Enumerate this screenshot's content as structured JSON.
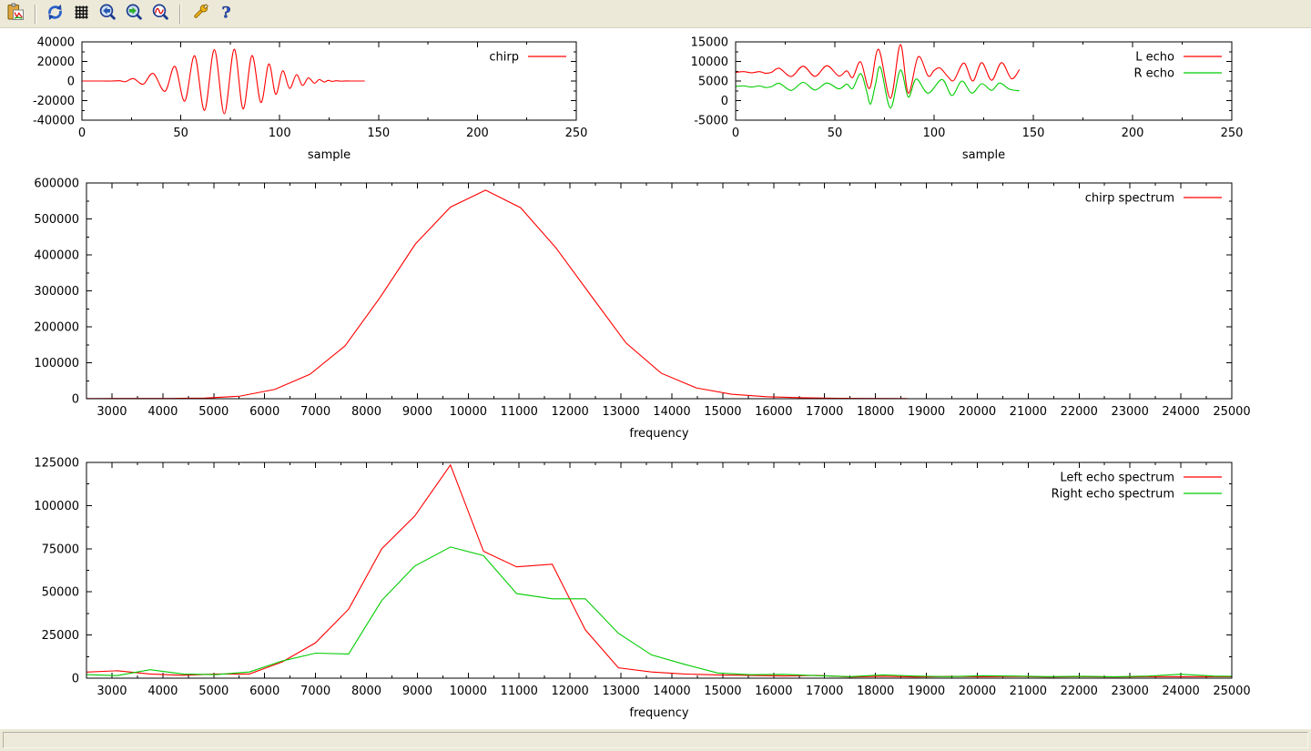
{
  "window": {
    "background": "#ece9d8",
    "canvas_background": "#ffffff",
    "axis_color": "#000000",
    "text_color": "#000000"
  },
  "toolbar": {
    "buttons": [
      {
        "name": "copy-to-clipboard",
        "icon": "copy-plot-icon"
      },
      {
        "name": "replot",
        "icon": "refresh-icon"
      },
      {
        "name": "toggle-grid",
        "icon": "grid-icon"
      },
      {
        "name": "previous-zoom",
        "icon": "zoom-previous-icon"
      },
      {
        "name": "next-zoom",
        "icon": "zoom-next-icon"
      },
      {
        "name": "autoscale",
        "icon": "zoom-autoscale-icon"
      },
      {
        "name": "configure",
        "icon": "wrench-icon"
      },
      {
        "name": "help",
        "icon": "help-icon"
      }
    ]
  },
  "status_bar": {
    "text": ""
  },
  "chart_data": [
    {
      "name": "chirp-signal",
      "type": "line",
      "xlabel": "sample",
      "ylabel": "",
      "x_range": [
        0,
        250
      ],
      "y_range": [
        -40000,
        40000
      ],
      "x_ticks": [
        0,
        50,
        100,
        150,
        200,
        250
      ],
      "y_ticks": [
        -40000,
        -20000,
        0,
        20000,
        40000
      ],
      "x_minor_step": 25,
      "y_minor_step": 10000,
      "grid": false,
      "legend_position": "top-right",
      "legend": [
        {
          "label": "chirp",
          "color": "#ff0000"
        }
      ],
      "series": [
        {
          "name": "chirp",
          "color": "#ff0000",
          "smooth": true,
          "points": [
            [
              0,
              0
            ],
            [
              8,
              0
            ],
            [
              15,
              0
            ],
            [
              19,
              300
            ],
            [
              22,
              -700
            ],
            [
              26,
              2500
            ],
            [
              31,
              -3200
            ],
            [
              36,
              7800
            ],
            [
              42,
              -10500
            ],
            [
              47,
              15000
            ],
            [
              52,
              -20500
            ],
            [
              57,
              25800
            ],
            [
              62,
              -30000
            ],
            [
              67,
              32000
            ],
            [
              72,
              -33500
            ],
            [
              77,
              32500
            ],
            [
              81.5,
              -28500
            ],
            [
              86,
              26000
            ],
            [
              90.5,
              -22000
            ],
            [
              94.5,
              17500
            ],
            [
              98,
              -13500
            ],
            [
              101.5,
              10500
            ],
            [
              105,
              -7500
            ],
            [
              108.5,
              6500
            ],
            [
              111.5,
              -4500
            ],
            [
              114.5,
              3200
            ],
            [
              117.5,
              -2200
            ],
            [
              120,
              1500
            ],
            [
              122.5,
              -1000
            ],
            [
              124.5,
              600
            ],
            [
              126.5,
              -400
            ],
            [
              128.5,
              250
            ],
            [
              131,
              -120
            ],
            [
              133.5,
              60
            ],
            [
              136,
              0
            ],
            [
              143,
              0
            ]
          ]
        }
      ]
    },
    {
      "name": "echo-signals",
      "type": "line",
      "xlabel": "sample",
      "ylabel": "",
      "x_range": [
        0,
        250
      ],
      "y_range": [
        -5000,
        15000
      ],
      "x_ticks": [
        0,
        50,
        100,
        150,
        200,
        250
      ],
      "y_ticks": [
        -5000,
        0,
        5000,
        10000,
        15000
      ],
      "x_minor_step": 25,
      "y_minor_step": 2500,
      "grid": false,
      "legend_position": "top-right",
      "legend": [
        {
          "label": "L echo",
          "color": "#ff0000"
        },
        {
          "label": "R echo",
          "color": "#00cc00"
        }
      ],
      "series": [
        {
          "name": "L echo",
          "color": "#ff0000",
          "smooth": true,
          "points": [
            [
              0,
              7200
            ],
            [
              4,
              7400
            ],
            [
              8,
              7100
            ],
            [
              12,
              7400
            ],
            [
              15,
              7000
            ],
            [
              18,
              7200
            ],
            [
              22,
              8250
            ],
            [
              28,
              6150
            ],
            [
              34,
              8800
            ],
            [
              40,
              6200
            ],
            [
              46,
              8900
            ],
            [
              52,
              6300
            ],
            [
              56,
              7600
            ],
            [
              59,
              5900
            ],
            [
              63,
              9900
            ],
            [
              67.5,
              3100
            ],
            [
              72,
              13100
            ],
            [
              78,
              600
            ],
            [
              83,
              14300
            ],
            [
              87,
              1900
            ],
            [
              92,
              11200
            ],
            [
              97,
              6300
            ],
            [
              100,
              7700
            ],
            [
              103,
              8300
            ],
            [
              107,
              6100
            ],
            [
              110,
              5200
            ],
            [
              115,
              9600
            ],
            [
              119.5,
              5000
            ],
            [
              124,
              9700
            ],
            [
              129,
              5200
            ],
            [
              134,
              9700
            ],
            [
              139,
              5600
            ],
            [
              143,
              7900
            ]
          ]
        },
        {
          "name": "R echo",
          "color": "#00cc00",
          "smooth": true,
          "points": [
            [
              0,
              3600
            ],
            [
              4,
              3750
            ],
            [
              8,
              3450
            ],
            [
              12,
              3750
            ],
            [
              15,
              3350
            ],
            [
              18,
              3550
            ],
            [
              22,
              4400
            ],
            [
              28,
              2600
            ],
            [
              34,
              4650
            ],
            [
              40,
              2700
            ],
            [
              46,
              4500
            ],
            [
              52,
              3000
            ],
            [
              56,
              4200
            ],
            [
              59,
              3100
            ],
            [
              63,
              6900
            ],
            [
              66,
              2400
            ],
            [
              68,
              -900
            ],
            [
              70.5,
              4200
            ],
            [
              73,
              8500
            ],
            [
              78,
              -1900
            ],
            [
              83,
              7800
            ],
            [
              87,
              900
            ],
            [
              91,
              5500
            ],
            [
              97,
              1900
            ],
            [
              104,
              5400
            ],
            [
              109,
              1300
            ],
            [
              114,
              5000
            ],
            [
              119,
              1900
            ],
            [
              124,
              4300
            ],
            [
              129,
              2600
            ],
            [
              133,
              4500
            ],
            [
              138,
              2900
            ],
            [
              143,
              2500
            ]
          ]
        }
      ]
    },
    {
      "name": "chirp-spectrum",
      "type": "line",
      "xlabel": "frequency",
      "ylabel": "",
      "x_range": [
        2500,
        25000
      ],
      "y_range": [
        0,
        600000
      ],
      "x_ticks": [
        3000,
        4000,
        5000,
        6000,
        7000,
        8000,
        9000,
        10000,
        11000,
        12000,
        13000,
        14000,
        15000,
        16000,
        17000,
        18000,
        19000,
        20000,
        21000,
        22000,
        23000,
        24000,
        25000
      ],
      "y_ticks": [
        0,
        100000,
        200000,
        300000,
        400000,
        500000,
        600000
      ],
      "x_minor_step": 500,
      "y_minor_step": 50000,
      "grid": false,
      "legend_position": "top-right",
      "legend": [
        {
          "label": "chirp spectrum",
          "color": "#ff0000"
        }
      ],
      "series": [
        {
          "name": "chirp spectrum",
          "color": "#ff0000",
          "smooth": false,
          "points": [
            [
              2500,
              500
            ],
            [
              2750,
              600
            ],
            [
              3440,
              900
            ],
            [
              4130,
              800
            ],
            [
              4820,
              1800
            ],
            [
              5510,
              7000
            ],
            [
              6200,
              26000
            ],
            [
              6890,
              68000
            ],
            [
              7580,
              147000
            ],
            [
              8270,
              282000
            ],
            [
              8960,
              430000
            ],
            [
              9650,
              533000
            ],
            [
              10340,
              580000
            ],
            [
              11030,
              531000
            ],
            [
              11720,
              420000
            ],
            [
              12410,
              287000
            ],
            [
              13100,
              155000
            ],
            [
              13790,
              71000
            ],
            [
              14480,
              30000
            ],
            [
              15170,
              12500
            ],
            [
              15860,
              5500
            ],
            [
              16550,
              2600
            ],
            [
              17240,
              1300
            ],
            [
              17930,
              700
            ],
            [
              18620,
              400
            ]
          ]
        }
      ]
    },
    {
      "name": "echo-spectra",
      "type": "line",
      "xlabel": "frequency",
      "ylabel": "",
      "x_range": [
        2500,
        25000
      ],
      "y_range": [
        0,
        125000
      ],
      "x_ticks": [
        3000,
        4000,
        5000,
        6000,
        7000,
        8000,
        9000,
        10000,
        11000,
        12000,
        13000,
        14000,
        15000,
        16000,
        17000,
        18000,
        19000,
        20000,
        21000,
        22000,
        23000,
        24000,
        25000
      ],
      "y_ticks": [
        0,
        25000,
        50000,
        75000,
        100000,
        125000
      ],
      "x_minor_step": 500,
      "y_minor_step": 12500,
      "grid": false,
      "legend_position": "top-right",
      "legend": [
        {
          "label": "Left echo spectrum",
          "color": "#ff0000"
        },
        {
          "label": "Right echo spectrum",
          "color": "#00cc00"
        }
      ],
      "series": [
        {
          "name": "Left echo spectrum",
          "color": "#ff0000",
          "smooth": false,
          "points": [
            [
              2500,
              3500
            ],
            [
              3100,
              4300
            ],
            [
              3750,
              2400
            ],
            [
              4400,
              1700
            ],
            [
              5050,
              2400
            ],
            [
              5700,
              2400
            ],
            [
              6350,
              9500
            ],
            [
              7000,
              20500
            ],
            [
              7650,
              40000
            ],
            [
              8300,
              75000
            ],
            [
              8950,
              94000
            ],
            [
              9650,
              123500
            ],
            [
              10300,
              73500
            ],
            [
              10950,
              64500
            ],
            [
              11650,
              66000
            ],
            [
              12300,
              28000
            ],
            [
              12950,
              6000
            ],
            [
              13600,
              3600
            ],
            [
              14250,
              2400
            ],
            [
              14900,
              1900
            ],
            [
              15550,
              1600
            ],
            [
              16200,
              1300
            ],
            [
              16850,
              1600
            ],
            [
              17500,
              700
            ],
            [
              18150,
              1100
            ],
            [
              18800,
              700
            ],
            [
              19450,
              1000
            ],
            [
              20100,
              800
            ],
            [
              20750,
              1000
            ],
            [
              21400,
              700
            ],
            [
              22050,
              900
            ],
            [
              22700,
              700
            ],
            [
              23350,
              900
            ],
            [
              24000,
              800
            ],
            [
              24650,
              900
            ],
            [
              25000,
              800
            ]
          ]
        },
        {
          "name": "Right echo spectrum",
          "color": "#00cc00",
          "smooth": false,
          "points": [
            [
              2500,
              2100
            ],
            [
              3100,
              1500
            ],
            [
              3750,
              4900
            ],
            [
              4400,
              2400
            ],
            [
              5050,
              2100
            ],
            [
              5700,
              3600
            ],
            [
              6350,
              10000
            ],
            [
              7000,
              14500
            ],
            [
              7650,
              14000
            ],
            [
              8300,
              45000
            ],
            [
              8950,
              65000
            ],
            [
              9650,
              76000
            ],
            [
              10300,
              71000
            ],
            [
              10950,
              49000
            ],
            [
              11650,
              46000
            ],
            [
              12300,
              46000
            ],
            [
              12950,
              26000
            ],
            [
              13600,
              13500
            ],
            [
              14250,
              8000
            ],
            [
              14900,
              3000
            ],
            [
              15550,
              2000
            ],
            [
              16200,
              2200
            ],
            [
              16850,
              1500
            ],
            [
              17500,
              900
            ],
            [
              18150,
              1900
            ],
            [
              18800,
              1200
            ],
            [
              19450,
              900
            ],
            [
              20100,
              1400
            ],
            [
              20750,
              1200
            ],
            [
              21400,
              900
            ],
            [
              22050,
              1100
            ],
            [
              22700,
              800
            ],
            [
              23350,
              1200
            ],
            [
              24000,
              2300
            ],
            [
              24650,
              1200
            ],
            [
              25000,
              1100
            ]
          ]
        }
      ]
    }
  ]
}
